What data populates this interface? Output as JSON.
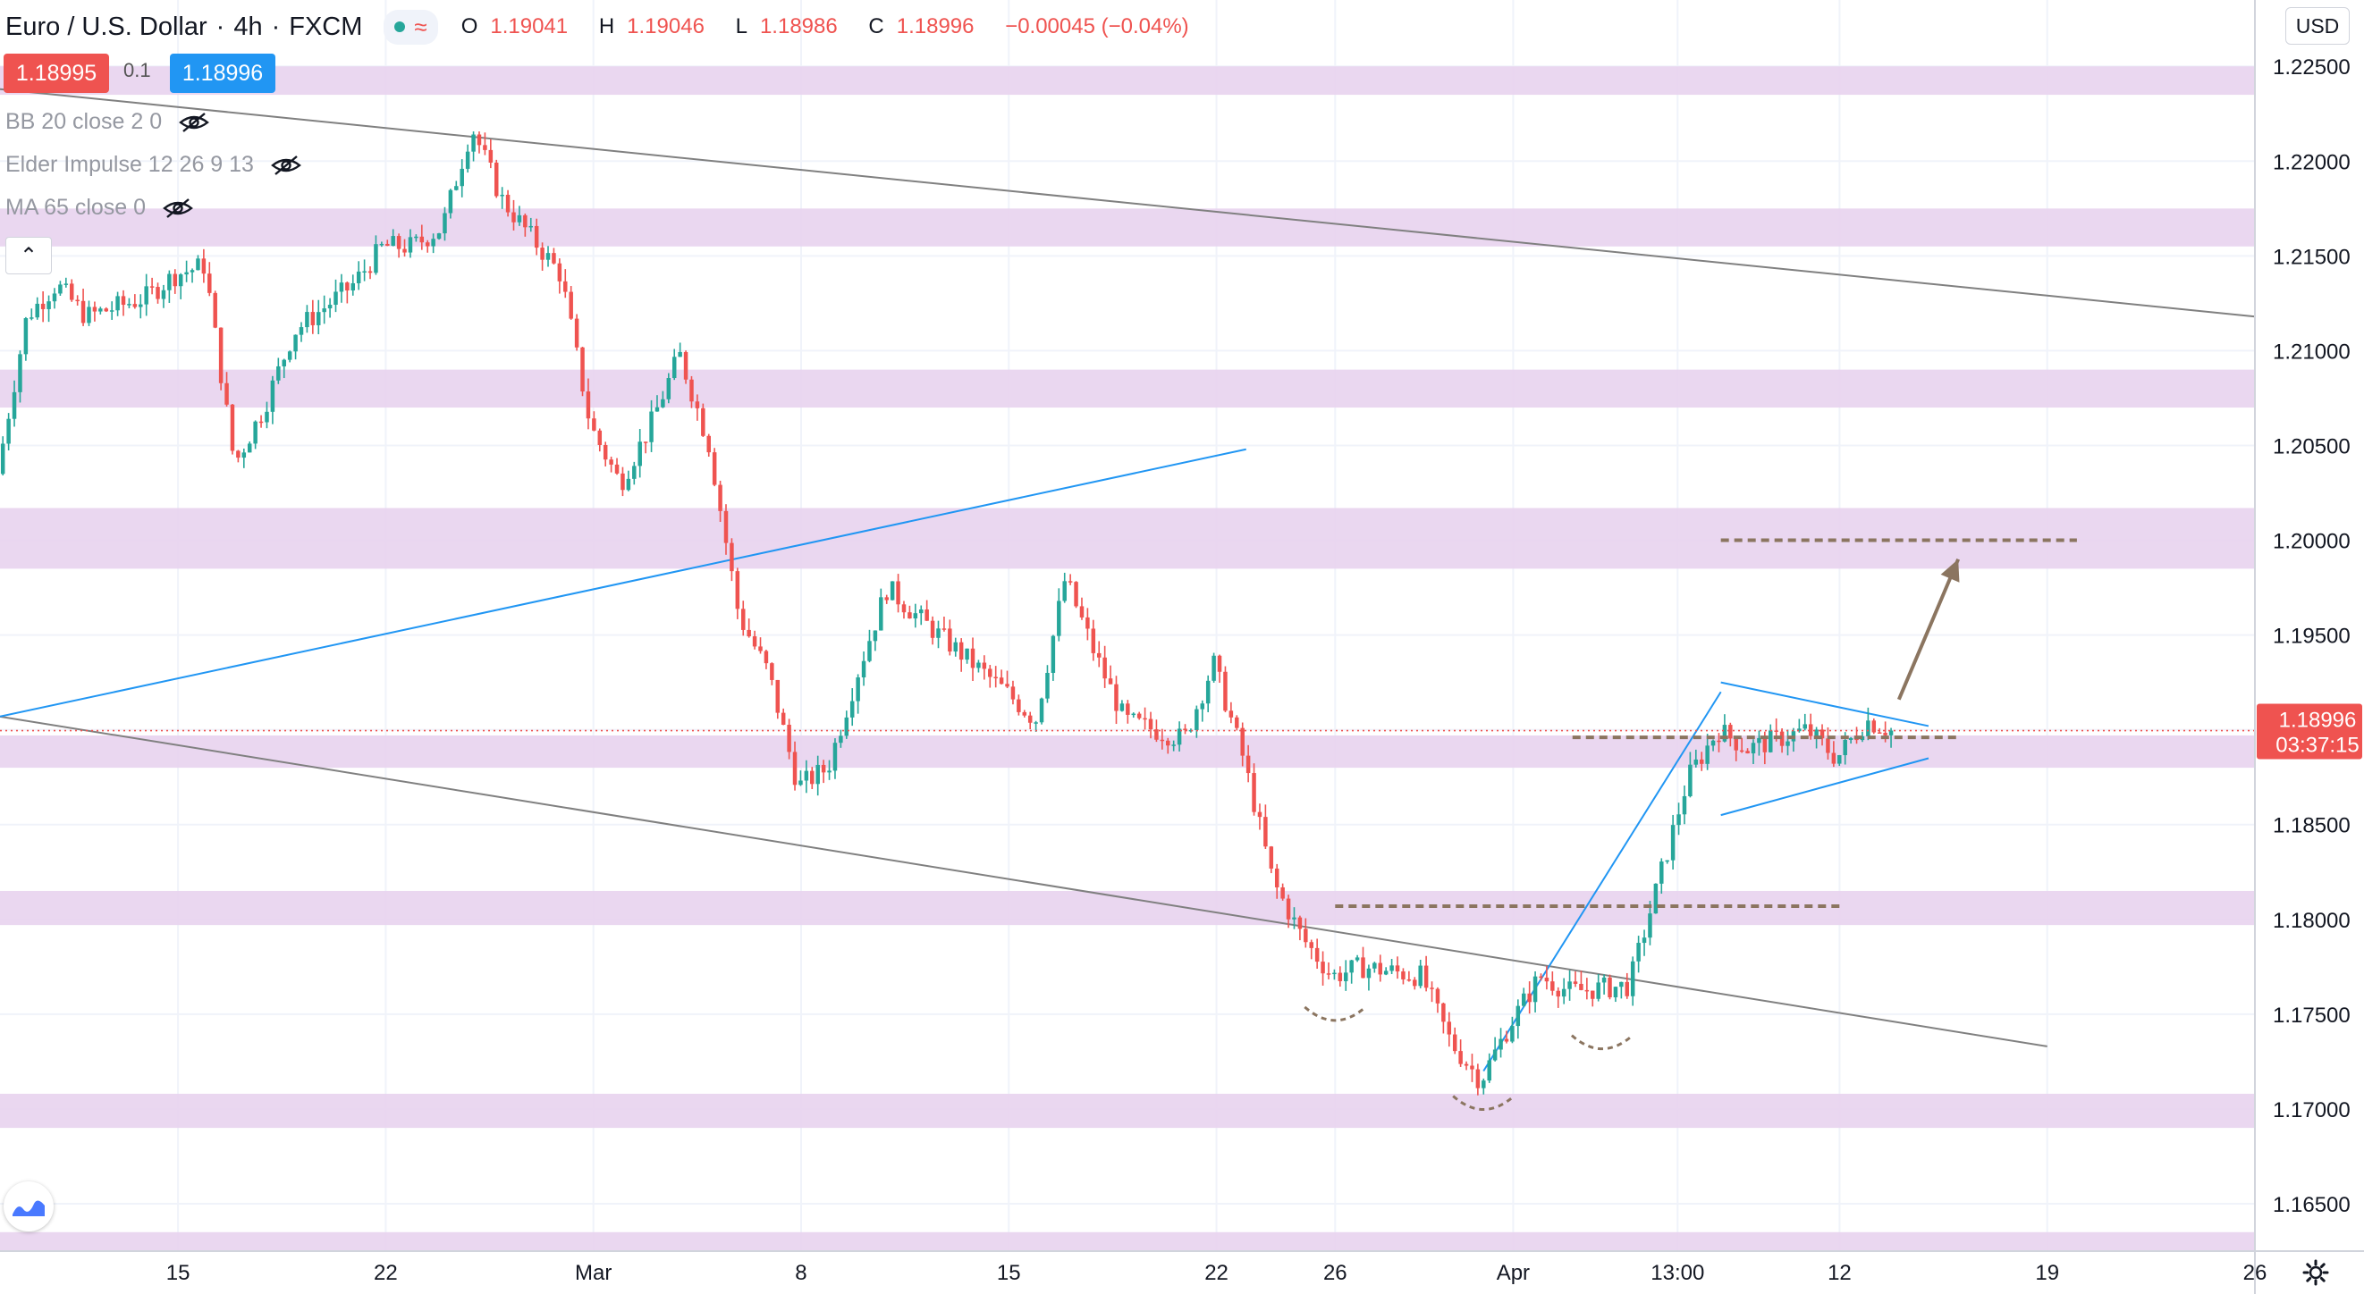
{
  "header": {
    "symbol": "Euro / U.S. Dollar",
    "interval": "4h",
    "exchange": "FXCM",
    "open_label": "O",
    "open": "1.19041",
    "high_label": "H",
    "high": "1.19046",
    "low_label": "L",
    "low": "1.18986",
    "close_label": "C",
    "close": "1.18996",
    "change": "−0.00045 (−0.04%)"
  },
  "trade": {
    "sell": "1.18995",
    "spread": "0.1",
    "buy": "1.18996"
  },
  "indicators": [
    {
      "label": "BB 20 close 2 0"
    },
    {
      "label": "Elder Impulse 12 26 9 13"
    },
    {
      "label": "MA 65 close 0"
    }
  ],
  "currency_button": "USD",
  "current_price": {
    "value": "1.18996",
    "countdown": "03:37:15"
  },
  "colors": {
    "up": "#26a69a",
    "down": "#ef5350",
    "zone": "#e8d3ee",
    "trend": "#808080",
    "channel": "#2196f3",
    "projection": "#8b7560"
  },
  "chart_data": {
    "type": "candlestick",
    "title": "Euro / U.S. Dollar",
    "ylim": [
      1.1625,
      1.2285
    ],
    "y_ticks": [
      "1.16500",
      "1.17000",
      "1.17500",
      "1.18000",
      "1.18500",
      "1.19000",
      "1.19500",
      "1.20000",
      "1.20500",
      "1.21000",
      "1.21500",
      "1.22000",
      "1.22500"
    ],
    "y_tick_values": [
      1.165,
      1.17,
      1.175,
      1.18,
      1.185,
      1.19,
      1.195,
      1.2,
      1.205,
      1.21,
      1.215,
      1.22,
      1.225
    ],
    "x_range": [
      "2021-02-09",
      "2021-04-26"
    ],
    "x_ticks": [
      {
        "label": "15",
        "date": "2021-02-15"
      },
      {
        "label": "22",
        "date": "2021-02-22"
      },
      {
        "label": "Mar",
        "date": "2021-03-01"
      },
      {
        "label": "8",
        "date": "2021-03-08"
      },
      {
        "label": "15",
        "date": "2021-03-15"
      },
      {
        "label": "22",
        "date": "2021-03-22"
      },
      {
        "label": "26",
        "date": "2021-03-26"
      },
      {
        "label": "Apr",
        "date": "2021-04-01"
      },
      {
        "label": "13:00",
        "date": "2021-04-06 13:00"
      },
      {
        "label": "12",
        "date": "2021-04-12"
      },
      {
        "label": "19",
        "date": "2021-04-19"
      },
      {
        "label": "26",
        "date": "2021-04-26"
      }
    ],
    "price_path": [
      {
        "date": "2021-02-09",
        "price": 1.2035
      },
      {
        "date": "2021-02-10",
        "price": 1.2118
      },
      {
        "date": "2021-02-11",
        "price": 1.2135
      },
      {
        "date": "2021-02-12",
        "price": 1.2118
      },
      {
        "date": "2021-02-14",
        "price": 1.2128
      },
      {
        "date": "2021-02-15",
        "price": 1.214
      },
      {
        "date": "2021-02-16",
        "price": 1.2145
      },
      {
        "date": "2021-02-17",
        "price": 1.204
      },
      {
        "date": "2021-02-18",
        "price": 1.207
      },
      {
        "date": "2021-02-19",
        "price": 1.211
      },
      {
        "date": "2021-02-21",
        "price": 1.2135
      },
      {
        "date": "2021-02-22",
        "price": 1.2155
      },
      {
        "date": "2021-02-23",
        "price": 1.2155
      },
      {
        "date": "2021-02-24",
        "price": 1.2165
      },
      {
        "date": "2021-02-25",
        "price": 1.2218
      },
      {
        "date": "2021-02-26",
        "price": 1.218
      },
      {
        "date": "2021-02-28",
        "price": 1.214
      },
      {
        "date": "2021-03-01",
        "price": 1.206
      },
      {
        "date": "2021-03-02",
        "price": 1.203
      },
      {
        "date": "2021-03-03",
        "price": 1.206
      },
      {
        "date": "2021-03-04",
        "price": 1.2098
      },
      {
        "date": "2021-03-05",
        "price": 1.205
      },
      {
        "date": "2021-03-06",
        "price": 1.196
      },
      {
        "date": "2021-03-07",
        "price": 1.193
      },
      {
        "date": "2021-03-08",
        "price": 1.187
      },
      {
        "date": "2021-03-09",
        "price": 1.188
      },
      {
        "date": "2021-03-10",
        "price": 1.193
      },
      {
        "date": "2021-03-11",
        "price": 1.1975
      },
      {
        "date": "2021-03-12",
        "price": 1.196
      },
      {
        "date": "2021-03-15",
        "price": 1.192
      },
      {
        "date": "2021-03-16",
        "price": 1.1905
      },
      {
        "date": "2021-03-17",
        "price": 1.198
      },
      {
        "date": "2021-03-18",
        "price": 1.194
      },
      {
        "date": "2021-03-19",
        "price": 1.1905
      },
      {
        "date": "2021-03-21",
        "price": 1.1895
      },
      {
        "date": "2021-03-22",
        "price": 1.1935
      },
      {
        "date": "2021-03-23",
        "price": 1.1885
      },
      {
        "date": "2021-03-24",
        "price": 1.182
      },
      {
        "date": "2021-03-25",
        "price": 1.179
      },
      {
        "date": "2021-03-26",
        "price": 1.177
      },
      {
        "date": "2021-03-27",
        "price": 1.1775
      },
      {
        "date": "2021-03-29",
        "price": 1.177
      },
      {
        "date": "2021-03-30",
        "price": 1.1735
      },
      {
        "date": "2021-03-31",
        "price": 1.1715
      },
      {
        "date": "2021-04-01",
        "price": 1.1745
      },
      {
        "date": "2021-04-02",
        "price": 1.177
      },
      {
        "date": "2021-04-03",
        "price": 1.1762
      },
      {
        "date": "2021-04-05",
        "price": 1.1765
      },
      {
        "date": "2021-04-06",
        "price": 1.182
      },
      {
        "date": "2021-04-07",
        "price": 1.1875
      },
      {
        "date": "2021-04-08",
        "price": 1.19
      },
      {
        "date": "2021-04-09",
        "price": 1.189
      },
      {
        "date": "2021-04-11",
        "price": 1.19
      },
      {
        "date": "2021-04-12",
        "price": 1.1885
      },
      {
        "date": "2021-04-13",
        "price": 1.1905
      },
      {
        "date": "2021-04-13 20:00",
        "price": 1.18996
      }
    ],
    "zones": [
      {
        "low": 1.2235,
        "high": 1.225
      },
      {
        "low": 1.2155,
        "high": 1.2175
      },
      {
        "low": 1.207,
        "high": 1.209
      },
      {
        "low": 1.1985,
        "high": 1.2017
      },
      {
        "low": 1.188,
        "high": 1.1897
      },
      {
        "low": 1.1797,
        "high": 1.1815
      },
      {
        "low": 1.169,
        "high": 1.1708
      },
      {
        "low": 1.1625,
        "high": 1.1635
      }
    ],
    "trendlines": [
      {
        "kind": "grey",
        "start": {
          "date": "2021-02-09",
          "price": 1.2238
        },
        "end": {
          "date": "2021-04-26",
          "price": 1.2118
        }
      },
      {
        "kind": "grey",
        "start": {
          "date": "2021-02-09",
          "price": 1.1907
        },
        "end": {
          "date": "2021-04-19",
          "price": 1.1733
        }
      },
      {
        "kind": "blue",
        "start": {
          "date": "2021-02-09",
          "price": 1.1907
        },
        "end": {
          "date": "2021-03-23",
          "price": 1.2048
        }
      },
      {
        "kind": "blue",
        "start": {
          "date": "2021-03-31",
          "price": 1.172
        },
        "end": {
          "date": "2021-04-08",
          "price": 1.192
        }
      },
      {
        "kind": "blue",
        "start": {
          "date": "2021-04-08",
          "price": 1.1925
        },
        "end": {
          "date": "2021-04-15",
          "price": 1.1902
        }
      },
      {
        "kind": "blue",
        "start": {
          "date": "2021-04-08",
          "price": 1.1855
        },
        "end": {
          "date": "2021-04-15",
          "price": 1.1885
        }
      }
    ],
    "dashed_levels": [
      {
        "start": "2021-04-08",
        "end": "2021-04-20",
        "price": 1.2
      },
      {
        "start": "2021-04-03",
        "end": "2021-04-16",
        "price": 1.1896
      },
      {
        "start": "2021-03-26",
        "end": "2021-04-12",
        "price": 1.1807
      }
    ],
    "projection_arrow": {
      "start": {
        "date": "2021-04-14",
        "price": 1.1916
      },
      "end": {
        "date": "2021-04-16",
        "price": 1.199
      }
    },
    "pattern_arcs": [
      {
        "center": "2021-03-26",
        "price": 1.175
      },
      {
        "center": "2021-03-31",
        "price": 1.1703
      },
      {
        "center": "2021-04-04",
        "price": 1.1735
      }
    ],
    "last_price": 1.18996
  }
}
